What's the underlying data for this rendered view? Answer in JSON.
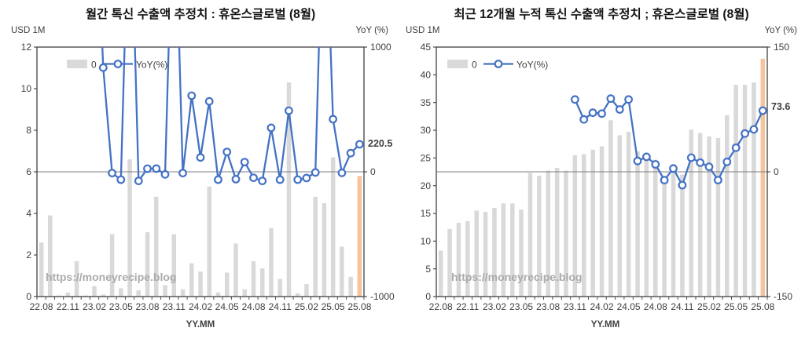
{
  "page": {
    "background": "#ffffff",
    "watermark": "https://moneyrecipe.blog"
  },
  "colors": {
    "bar": "#D9D9D9",
    "bar_highlight": "#F6C39C",
    "line": "#4472C4",
    "marker_fill": "#FFFFFF",
    "zero_line": "#808080",
    "axis": "#404040",
    "annotation": "#FF0000",
    "watermark": "#ABABAB"
  },
  "chart_data": [
    {
      "type": "combo-bar-line",
      "title": "월간 톡신 수출액 추정치 : 휴온스글로벌 (8월)",
      "y_axis_left": {
        "label": "USD 1M",
        "min": 0,
        "max": 12,
        "step": 2
      },
      "y_axis_right": {
        "label": "YoY (%)",
        "min": -1000,
        "max": 1000,
        "ticks": [
          1000,
          0,
          -1000
        ]
      },
      "x_axis": {
        "label": "YY.MM",
        "labeled_every": 3
      },
      "legend": {
        "bar_label": "0",
        "line_label": "YoY(%)"
      },
      "watermark": "https://moneyrecipe.blog",
      "annotation": {
        "label": "220.5",
        "applies_to": "25.08",
        "color": "#FF0000"
      },
      "note": "line values above right-axis max are clipped off-chart in source; stored here as 2500",
      "categories": [
        "22.08",
        "22.09",
        "22.10",
        "22.11",
        "22.12",
        "23.01",
        "23.02",
        "23.03",
        "23.04",
        "23.05",
        "23.06",
        "23.07",
        "23.08",
        "23.09",
        "23.10",
        "23.11",
        "23.12",
        "24.01",
        "24.02",
        "24.03",
        "24.04",
        "24.05",
        "24.06",
        "24.07",
        "24.08",
        "24.09",
        "24.10",
        "24.11",
        "24.12",
        "25.01",
        "25.02",
        "25.03",
        "25.04",
        "25.05",
        "25.06",
        "25.07",
        "25.08"
      ],
      "series_bar": {
        "name": "0",
        "unit": "USD 1M",
        "values": [
          2.6,
          3.9,
          0.05,
          0.2,
          1.7,
          0.05,
          0.5,
          0.1,
          3.0,
          0.4,
          6.6,
          0.3,
          3.1,
          4.8,
          0.55,
          3.0,
          0.35,
          1.6,
          1.2,
          5.3,
          0.2,
          1.15,
          2.55,
          0.35,
          1.7,
          1.35,
          3.3,
          0.85,
          10.3,
          0.15,
          0.6,
          4.8,
          4.5,
          6.7,
          2.4,
          0.95,
          5.8
        ],
        "highlight_last": true
      },
      "series_line": {
        "name": "YoY(%)",
        "unit": "%",
        "values": [
          null,
          null,
          null,
          null,
          null,
          null,
          2500,
          835,
          -10,
          -63,
          2500,
          -73,
          25,
          26,
          -21,
          2500,
          -10,
          610,
          115,
          565,
          -63,
          160,
          -59,
          78,
          -48,
          -73,
          353,
          -63,
          490,
          -63,
          -50,
          -5,
          2500,
          422,
          -8,
          150,
          220.5
        ]
      }
    },
    {
      "type": "combo-bar-line",
      "title": "최근 12개월 누적 톡신 수출액 추정치 ; 휴온스글로벌 (8월)",
      "y_axis_left": {
        "label": "USD 1M",
        "min": 0,
        "max": 45,
        "step": 5
      },
      "y_axis_right": {
        "label": "YoY (%)",
        "min": -150,
        "max": 150,
        "ticks": [
          150,
          0,
          -150
        ]
      },
      "x_axis": {
        "label": "YY.MM",
        "labeled_every": 3
      },
      "legend": {
        "bar_label": "0",
        "line_label": "YoY(%)"
      },
      "watermark": "https://moneyrecipe.blog",
      "annotation": {
        "label": "73.6",
        "applies_to": "25.08",
        "color": "#FF0000"
      },
      "categories": [
        "22.08",
        "22.09",
        "22.10",
        "22.11",
        "22.12",
        "23.01",
        "23.02",
        "23.03",
        "23.04",
        "23.05",
        "23.06",
        "23.07",
        "23.08",
        "23.09",
        "23.10",
        "23.11",
        "23.12",
        "24.01",
        "24.02",
        "24.03",
        "24.04",
        "24.05",
        "24.06",
        "24.07",
        "24.08",
        "24.09",
        "24.10",
        "24.11",
        "24.12",
        "25.01",
        "25.02",
        "25.03",
        "25.04",
        "25.05",
        "25.06",
        "25.07",
        "25.08"
      ],
      "series_bar": {
        "name": "0",
        "unit": "USD 1M",
        "values": [
          8.3,
          12.2,
          13.3,
          13.6,
          15.5,
          15.3,
          16.0,
          16.8,
          16.8,
          15.7,
          22.3,
          21.8,
          22.7,
          23.2,
          22.7,
          25.5,
          25.7,
          26.5,
          27.1,
          31.8,
          29.1,
          29.7,
          26.2,
          25.6,
          24.7,
          21.4,
          23.9,
          22.0,
          30.1,
          29.5,
          28.9,
          28.6,
          32.7,
          38.2,
          38.2,
          38.6,
          42.9
        ],
        "highlight_last": true
      },
      "series_line": {
        "name": "YoY(%)",
        "unit": "%",
        "values": [
          null,
          null,
          null,
          null,
          null,
          null,
          null,
          null,
          null,
          null,
          null,
          null,
          null,
          null,
          null,
          87,
          63,
          71,
          70,
          88,
          75,
          87,
          13,
          18,
          9,
          -10,
          4,
          -16,
          17,
          11,
          6,
          -10,
          12,
          29,
          46,
          51,
          73.6
        ]
      }
    }
  ]
}
